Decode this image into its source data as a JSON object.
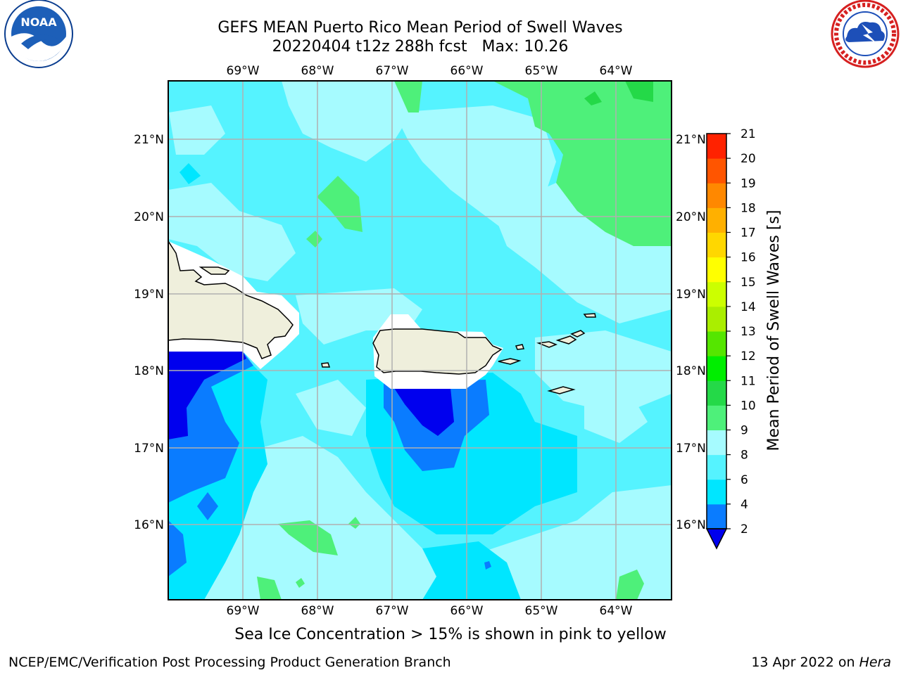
{
  "title_line1": "GEFS MEAN Puerto Rico Mean Period of Swell Waves",
  "title_line2": "20220404 t12z 288h fcst   Max: 10.26",
  "footnote": "Sea Ice Concentration > 15% is shown in pink to yellow",
  "footer_left": "NCEP/EMC/Verification Post Processing Product Generation Branch",
  "footer_date": "13 Apr 2022 on",
  "footer_machine": "Hera",
  "logos": {
    "left": "noaa-logo",
    "right": "nws-logo"
  },
  "map": {
    "lon_labels": [
      "69°W",
      "68°W",
      "67°W",
      "66°W",
      "65°W",
      "64°W"
    ],
    "lat_labels": [
      "21°N",
      "20°N",
      "19°N",
      "18°N",
      "17°N",
      "16°N"
    ],
    "lon_values": [
      -69,
      -68,
      -67,
      -66,
      -65,
      -64
    ],
    "lat_values": [
      21,
      20,
      19,
      18,
      17,
      16
    ],
    "lon_range": [
      -70,
      -63.25
    ],
    "lat_range": [
      15,
      21.75
    ],
    "land_color": "#efefdc",
    "grid": true
  },
  "colorbar": {
    "label": "Mean Period of Swell Waves [s]",
    "ticks": [
      "2",
      "4",
      "6",
      "8",
      "9",
      "10",
      "11",
      "12",
      "13",
      "14",
      "15",
      "16",
      "17",
      "18",
      "19",
      "20",
      "21"
    ],
    "colors": [
      "#0000ee",
      "#0a7cff",
      "#00e6ff",
      "#55f3ff",
      "#a6fbff",
      "#4ef07a",
      "#24d948",
      "#00ee00",
      "#55e600",
      "#aaee00",
      "#ccff00",
      "#ffff00",
      "#ffd700",
      "#ffb000",
      "#ff8800",
      "#ff5500",
      "#ff2200",
      "#ff0000"
    ],
    "extend": "min"
  }
}
